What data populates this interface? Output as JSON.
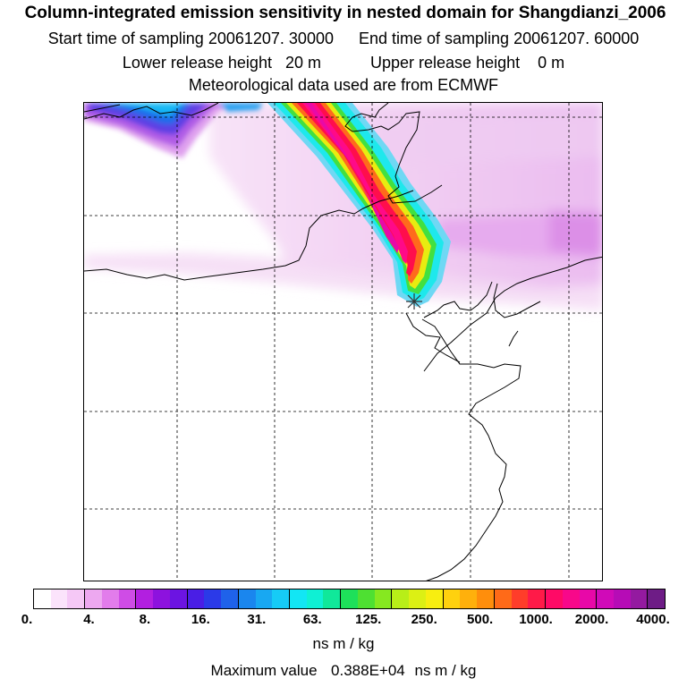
{
  "title": {
    "main": "Column-integrated emission sensitivity in nested domain for Shangdianzi_2006",
    "start_label": "Start time of sampling",
    "start_value": "20061207. 30000",
    "end_label": "End time of sampling",
    "end_value": "20061207. 60000",
    "lower_label": "Lower release height",
    "lower_value": "20 m",
    "upper_label": "Upper release height",
    "upper_value": "0 m",
    "meteo": "Meteorological data used are from ECMWF"
  },
  "colorbar": {
    "ticks": [
      "0.",
      "4.",
      "8.",
      "16.",
      "31.",
      "63.",
      "125.",
      "250.",
      "500.",
      "1000.",
      "2000.",
      "4000."
    ],
    "colors": [
      "#ffffff",
      "#fbe3fb",
      "#f5c8f6",
      "#eda8f0",
      "#e27ceb",
      "#cf4ce6",
      "#b21fe0",
      "#8d12de",
      "#6c14e2",
      "#4a1ee5",
      "#2b3ae8",
      "#1f62ea",
      "#1a86ee",
      "#18a8f2",
      "#16cbf6",
      "#12e6f4",
      "#0ff0d4",
      "#10e89a",
      "#1ee05a",
      "#4ee032",
      "#86e820",
      "#b8ee18",
      "#dcf014",
      "#f8ee10",
      "#ffd10e",
      "#ffb00c",
      "#ff8e0c",
      "#ff6a18",
      "#ff3d2a",
      "#ff1a48",
      "#ff0a66",
      "#f8088a",
      "#e808a8",
      "#d00ab8",
      "#b60cb6",
      "#941aa0",
      "#6e1c86"
    ],
    "unit": "ns m / kg"
  },
  "max_value": {
    "label": "Maximum value",
    "value": "0.388E+04",
    "unit": "ns m / kg"
  },
  "map": {
    "receptor_marker": "star",
    "plume_colors": {
      "low": "#f2d0f2",
      "cyan": "#10e8f0",
      "magenta": "#ff0a86",
      "red": "#ff1a40"
    }
  }
}
